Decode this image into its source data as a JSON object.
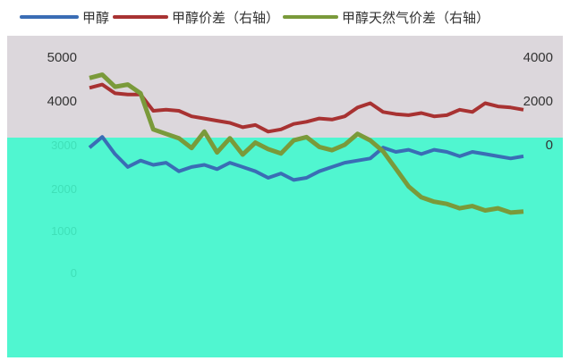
{
  "legend": {
    "items": [
      {
        "label": "甲醇",
        "color": "#3a6db5"
      },
      {
        "label": "甲醇价差（右轴）",
        "color": "#a83232"
      },
      {
        "label": "甲醇天然气价差（右轴）",
        "color": "#7a9a3a"
      }
    ]
  },
  "chart_data": {
    "type": "line",
    "title": "",
    "left_axis": {
      "ticks": [
        "5000",
        "4000",
        "3000",
        "2000",
        "1000",
        "0"
      ]
    },
    "right_axis": {
      "ticks": [
        "4000",
        "2000",
        "0"
      ]
    },
    "series": [
      {
        "name": "甲醇",
        "color": "#3a6db5",
        "axis": "left",
        "values": [
          2900,
          3150,
          2750,
          2450,
          2600,
          2500,
          2550,
          2350,
          2450,
          2500,
          2400,
          2550,
          2450,
          2350,
          2200,
          2300,
          2150,
          2200,
          2350,
          2450,
          2550,
          2600,
          2650,
          2900,
          2800,
          2850,
          2750,
          2850,
          2800,
          2700,
          2800,
          2750,
          2700,
          2650,
          2700
        ]
      },
      {
        "name": "甲醇价差（右轴）",
        "color": "#a83232",
        "axis": "right",
        "values": [
          2600,
          2750,
          2350,
          2300,
          2300,
          1550,
          1600,
          1550,
          1300,
          1200,
          1100,
          1000,
          800,
          900,
          600,
          700,
          950,
          1050,
          1200,
          1150,
          1300,
          1700,
          1900,
          1500,
          1400,
          1350,
          1450,
          1300,
          1350,
          1600,
          1500,
          1900,
          1750,
          1700,
          1600
        ]
      },
      {
        "name": "甲醇天然气价差（右轴）",
        "color": "#7a9a3a",
        "axis": "right",
        "values": [
          3050,
          3200,
          2650,
          2750,
          2350,
          700,
          500,
          300,
          -150,
          600,
          -350,
          300,
          -450,
          100,
          -200,
          -400,
          200,
          350,
          -100,
          -250,
          0,
          500,
          200,
          -300,
          -1100,
          -1900,
          -2400,
          -2600,
          -2700,
          -2900,
          -2800,
          -3000,
          -2900,
          -3100,
          -3050
        ]
      }
    ]
  }
}
